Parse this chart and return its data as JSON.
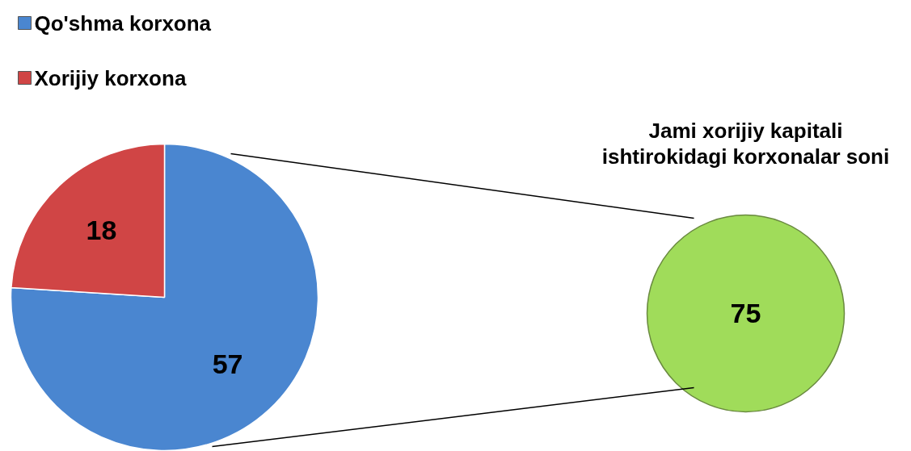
{
  "chart_data": [
    {
      "type": "pie",
      "categories": [
        "Qo'shma korxona",
        "Xorijiy korxona"
      ],
      "values": [
        57,
        18
      ],
      "colors": [
        "#4a86d0",
        "#d04545"
      ],
      "data_labels": true,
      "legend": "top left"
    },
    {
      "type": "pie",
      "title": "Jami xorijiy kapitali\nishtirokidagi korxonalar soni",
      "categories": [
        null
      ],
      "values": [
        75
      ],
      "colors": [
        "#a0dc5a"
      ],
      "data_labels": true
    }
  ]
}
